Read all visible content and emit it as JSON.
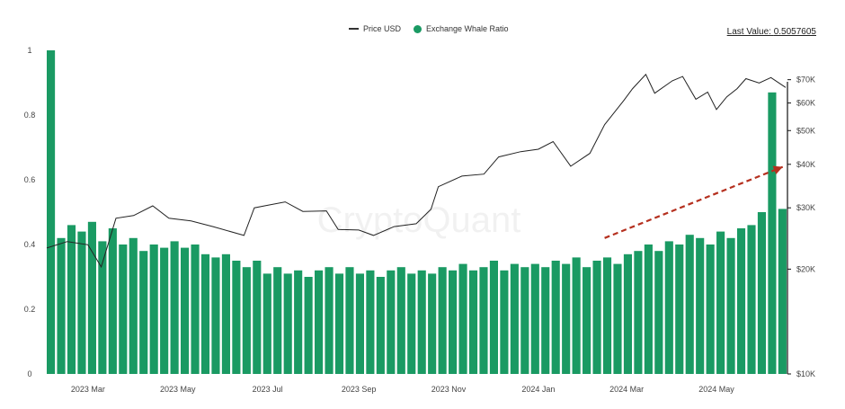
{
  "legend": {
    "price_label": "Price USD",
    "ratio_label": "Exchange Whale Ratio"
  },
  "last_value": {
    "label": "Last Value:",
    "value": "0.5057605"
  },
  "watermark": "CryptoQuant",
  "colors": {
    "bar": "#1a9a63",
    "price_line": "#222222",
    "trend_arrow": "#b5301f"
  },
  "chart_data": {
    "type": "bar",
    "title": "",
    "xlabel": "",
    "ylabel": "",
    "x_range": [
      "2023-02-01",
      "2024-06-17"
    ],
    "x_ticks": [
      {
        "date": "2023-03-01",
        "label": "2023 Mar"
      },
      {
        "date": "2023-05-01",
        "label": "2023 May"
      },
      {
        "date": "2023-07-01",
        "label": "2023 Jul"
      },
      {
        "date": "2023-09-01",
        "label": "2023 Sep"
      },
      {
        "date": "2023-11-01",
        "label": "2023 Nov"
      },
      {
        "date": "2024-01-01",
        "label": "2024 Jan"
      },
      {
        "date": "2024-03-01",
        "label": "2024 Mar"
      },
      {
        "date": "2024-05-01",
        "label": "2024 May"
      }
    ],
    "y_left": {
      "min": 0,
      "max": 1,
      "ticks": [
        0,
        0.2,
        0.4,
        0.6,
        0.8,
        1
      ]
    },
    "y_right": {
      "scale": "log",
      "min": 10000,
      "max": 85000,
      "ticks": [
        {
          "value": 10000,
          "label": "$10K"
        },
        {
          "value": 20000,
          "label": "$20K"
        },
        {
          "value": 30000,
          "label": "$30K"
        },
        {
          "value": 40000,
          "label": "$40K"
        },
        {
          "value": 50000,
          "label": "$50K"
        },
        {
          "value": 60000,
          "label": "$60K"
        },
        {
          "value": 70000,
          "label": "$70K"
        }
      ]
    },
    "series": [
      {
        "name": "Exchange Whale Ratio",
        "type": "bar",
        "axis": "left",
        "points": [
          [
            "2023-02-01",
            1.0
          ],
          [
            "2023-02-08",
            0.42
          ],
          [
            "2023-02-15",
            0.46
          ],
          [
            "2023-02-22",
            0.44
          ],
          [
            "2023-03-01",
            0.47
          ],
          [
            "2023-03-08",
            0.41
          ],
          [
            "2023-03-15",
            0.45
          ],
          [
            "2023-03-22",
            0.4
          ],
          [
            "2023-03-29",
            0.42
          ],
          [
            "2023-04-05",
            0.38
          ],
          [
            "2023-04-12",
            0.4
          ],
          [
            "2023-04-19",
            0.39
          ],
          [
            "2023-04-26",
            0.41
          ],
          [
            "2023-05-03",
            0.39
          ],
          [
            "2023-05-10",
            0.4
          ],
          [
            "2023-05-17",
            0.37
          ],
          [
            "2023-05-24",
            0.36
          ],
          [
            "2023-05-31",
            0.37
          ],
          [
            "2023-06-07",
            0.35
          ],
          [
            "2023-06-14",
            0.33
          ],
          [
            "2023-06-21",
            0.35
          ],
          [
            "2023-06-28",
            0.31
          ],
          [
            "2023-07-05",
            0.33
          ],
          [
            "2023-07-12",
            0.31
          ],
          [
            "2023-07-19",
            0.32
          ],
          [
            "2023-07-26",
            0.3
          ],
          [
            "2023-08-02",
            0.32
          ],
          [
            "2023-08-09",
            0.33
          ],
          [
            "2023-08-16",
            0.31
          ],
          [
            "2023-08-23",
            0.33
          ],
          [
            "2023-08-30",
            0.31
          ],
          [
            "2023-09-06",
            0.32
          ],
          [
            "2023-09-13",
            0.3
          ],
          [
            "2023-09-20",
            0.32
          ],
          [
            "2023-09-27",
            0.33
          ],
          [
            "2023-10-04",
            0.31
          ],
          [
            "2023-10-11",
            0.32
          ],
          [
            "2023-10-18",
            0.31
          ],
          [
            "2023-10-25",
            0.33
          ],
          [
            "2023-11-01",
            0.32
          ],
          [
            "2023-11-08",
            0.34
          ],
          [
            "2023-11-15",
            0.32
          ],
          [
            "2023-11-22",
            0.33
          ],
          [
            "2023-11-29",
            0.35
          ],
          [
            "2023-12-06",
            0.32
          ],
          [
            "2023-12-13",
            0.34
          ],
          [
            "2023-12-20",
            0.33
          ],
          [
            "2023-12-27",
            0.34
          ],
          [
            "2024-01-03",
            0.33
          ],
          [
            "2024-01-10",
            0.35
          ],
          [
            "2024-01-17",
            0.34
          ],
          [
            "2024-01-24",
            0.36
          ],
          [
            "2024-01-31",
            0.33
          ],
          [
            "2024-02-07",
            0.35
          ],
          [
            "2024-02-14",
            0.36
          ],
          [
            "2024-02-21",
            0.34
          ],
          [
            "2024-02-28",
            0.37
          ],
          [
            "2024-03-06",
            0.38
          ],
          [
            "2024-03-13",
            0.4
          ],
          [
            "2024-03-20",
            0.38
          ],
          [
            "2024-03-27",
            0.41
          ],
          [
            "2024-04-03",
            0.4
          ],
          [
            "2024-04-10",
            0.43
          ],
          [
            "2024-04-17",
            0.42
          ],
          [
            "2024-04-24",
            0.4
          ],
          [
            "2024-05-01",
            0.44
          ],
          [
            "2024-05-08",
            0.42
          ],
          [
            "2024-05-15",
            0.45
          ],
          [
            "2024-05-22",
            0.46
          ],
          [
            "2024-05-29",
            0.5
          ],
          [
            "2024-06-05",
            0.87
          ],
          [
            "2024-06-12",
            0.51
          ]
        ]
      },
      {
        "name": "Price USD",
        "type": "line",
        "axis": "right",
        "points": [
          [
            "2023-02-01",
            23000
          ],
          [
            "2023-02-15",
            24000
          ],
          [
            "2023-03-01",
            23500
          ],
          [
            "2023-03-10",
            20300
          ],
          [
            "2023-03-20",
            28000
          ],
          [
            "2023-04-01",
            28500
          ],
          [
            "2023-04-14",
            30400
          ],
          [
            "2023-04-25",
            28000
          ],
          [
            "2023-05-10",
            27500
          ],
          [
            "2023-05-25",
            26500
          ],
          [
            "2023-06-15",
            25000
          ],
          [
            "2023-06-22",
            30000
          ],
          [
            "2023-07-01",
            30500
          ],
          [
            "2023-07-13",
            31200
          ],
          [
            "2023-07-25",
            29300
          ],
          [
            "2023-08-10",
            29400
          ],
          [
            "2023-08-18",
            26000
          ],
          [
            "2023-09-01",
            25900
          ],
          [
            "2023-09-11",
            25000
          ],
          [
            "2023-09-25",
            26500
          ],
          [
            "2023-10-10",
            27000
          ],
          [
            "2023-10-20",
            29700
          ],
          [
            "2023-10-25",
            34500
          ],
          [
            "2023-11-10",
            37000
          ],
          [
            "2023-11-25",
            37500
          ],
          [
            "2023-12-05",
            42000
          ],
          [
            "2023-12-20",
            43500
          ],
          [
            "2024-01-01",
            44200
          ],
          [
            "2024-01-11",
            46500
          ],
          [
            "2024-01-23",
            39500
          ],
          [
            "2024-02-05",
            43000
          ],
          [
            "2024-02-15",
            52000
          ],
          [
            "2024-02-28",
            61000
          ],
          [
            "2024-03-05",
            66000
          ],
          [
            "2024-03-14",
            72500
          ],
          [
            "2024-03-20",
            64000
          ],
          [
            "2024-04-01",
            69500
          ],
          [
            "2024-04-08",
            71500
          ],
          [
            "2024-04-17",
            61500
          ],
          [
            "2024-04-25",
            64500
          ],
          [
            "2024-05-01",
            57500
          ],
          [
            "2024-05-08",
            62500
          ],
          [
            "2024-05-15",
            66000
          ],
          [
            "2024-05-21",
            70500
          ],
          [
            "2024-05-30",
            68500
          ],
          [
            "2024-06-07",
            71000
          ],
          [
            "2024-06-17",
            66500
          ]
        ]
      }
    ],
    "annotation": {
      "type": "arrow",
      "style": "dashed",
      "from": [
        "2024-02-15",
        0.42
      ],
      "to": [
        "2024-06-15",
        0.64
      ]
    },
    "grid": false,
    "legend_position": "top-center"
  }
}
